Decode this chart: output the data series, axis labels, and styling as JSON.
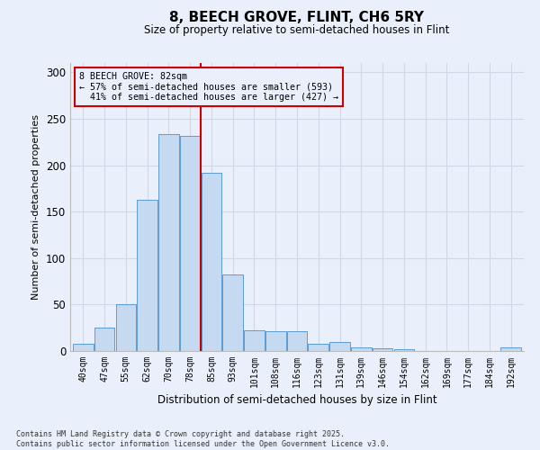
{
  "title": "8, BEECH GROVE, FLINT, CH6 5RY",
  "subtitle": "Size of property relative to semi-detached houses in Flint",
  "xlabel": "Distribution of semi-detached houses by size in Flint",
  "ylabel": "Number of semi-detached properties",
  "categories": [
    "40sqm",
    "47sqm",
    "55sqm",
    "62sqm",
    "70sqm",
    "78sqm",
    "85sqm",
    "93sqm",
    "101sqm",
    "108sqm",
    "116sqm",
    "123sqm",
    "131sqm",
    "139sqm",
    "146sqm",
    "154sqm",
    "162sqm",
    "169sqm",
    "177sqm",
    "184sqm",
    "192sqm"
  ],
  "values": [
    8,
    25,
    50,
    163,
    233,
    232,
    192,
    82,
    22,
    21,
    21,
    8,
    10,
    4,
    3,
    2,
    0,
    0,
    0,
    0,
    4
  ],
  "bar_color": "#c5d9f0",
  "bar_edge_color": "#5b9bd5",
  "grid_color": "#d0d8e8",
  "background_color": "#eaf0fb",
  "property_label": "8 BEECH GROVE: 82sqm",
  "smaller_pct": 57,
  "smaller_count": 593,
  "larger_pct": 41,
  "larger_count": 427,
  "red_line_color": "#cc0000",
  "annotation_box_edge": "#cc0000",
  "ylim": [
    0,
    310
  ],
  "yticks": [
    0,
    50,
    100,
    150,
    200,
    250,
    300
  ],
  "red_line_x": 5.5,
  "footer_line1": "Contains HM Land Registry data © Crown copyright and database right 2025.",
  "footer_line2": "Contains public sector information licensed under the Open Government Licence v3.0."
}
